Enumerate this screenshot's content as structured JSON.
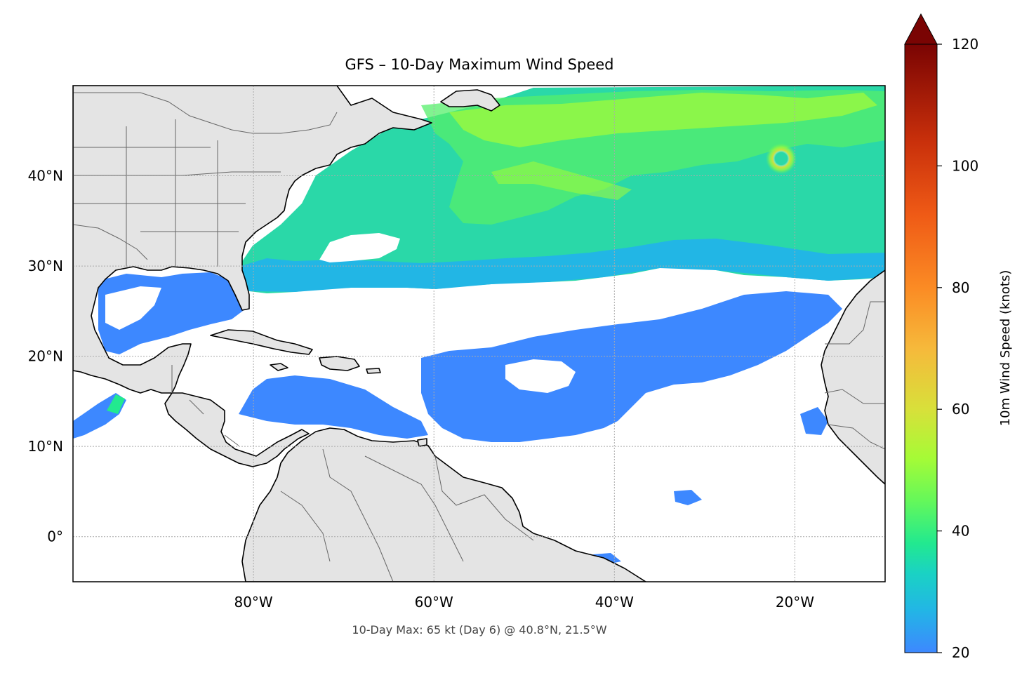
{
  "title": "GFS – 10-Day Maximum Wind Speed",
  "annotation": "10-Day Max: 65 kt (Day 6) @ 40.8°N, 21.5°W",
  "map": {
    "lon_range": [
      -100,
      -10
    ],
    "lat_range": [
      -5,
      50
    ],
    "lon_ticks": [
      {
        "value": -80,
        "label": "80°W"
      },
      {
        "value": -60,
        "label": "60°W"
      },
      {
        "value": -40,
        "label": "40°W"
      },
      {
        "value": -20,
        "label": "20°W"
      }
    ],
    "lat_ticks": [
      {
        "value": 40,
        "label": "40°N"
      },
      {
        "value": 30,
        "label": "30°N"
      },
      {
        "value": 20,
        "label": "20°N"
      },
      {
        "value": 10,
        "label": "10°N"
      },
      {
        "value": 0,
        "label": "0°"
      }
    ],
    "gridlines": true,
    "land_color": "#e4e4e4",
    "coastline_color": "#000000",
    "border_color": "#666666",
    "field_threshold_kt": 20,
    "peak": {
      "value_kt": 65,
      "day": 6,
      "lat": 40.8,
      "lon": -21.5
    }
  },
  "colorbar": {
    "label": "10m Wind Speed (knots)",
    "min": 20,
    "max": 120,
    "extend": "max",
    "ticks": [
      {
        "value": 20,
        "label": "20"
      },
      {
        "value": 40,
        "label": "40"
      },
      {
        "value": 60,
        "label": "60"
      },
      {
        "value": 80,
        "label": "80"
      },
      {
        "value": 100,
        "label": "100"
      },
      {
        "value": 120,
        "label": "120"
      }
    ],
    "stops": [
      {
        "value": 20,
        "color": "#3d88ff"
      },
      {
        "value": 27,
        "color": "#22b6e5"
      },
      {
        "value": 33,
        "color": "#1ad2c4"
      },
      {
        "value": 38,
        "color": "#22e98f"
      },
      {
        "value": 45,
        "color": "#65f85a"
      },
      {
        "value": 52,
        "color": "#a6fb36"
      },
      {
        "value": 60,
        "color": "#d8e03a"
      },
      {
        "value": 70,
        "color": "#f6b93b"
      },
      {
        "value": 80,
        "color": "#fb8b24"
      },
      {
        "value": 92,
        "color": "#ef5a16"
      },
      {
        "value": 104,
        "color": "#c9300b"
      },
      {
        "value": 120,
        "color": "#7a0403"
      }
    ]
  }
}
